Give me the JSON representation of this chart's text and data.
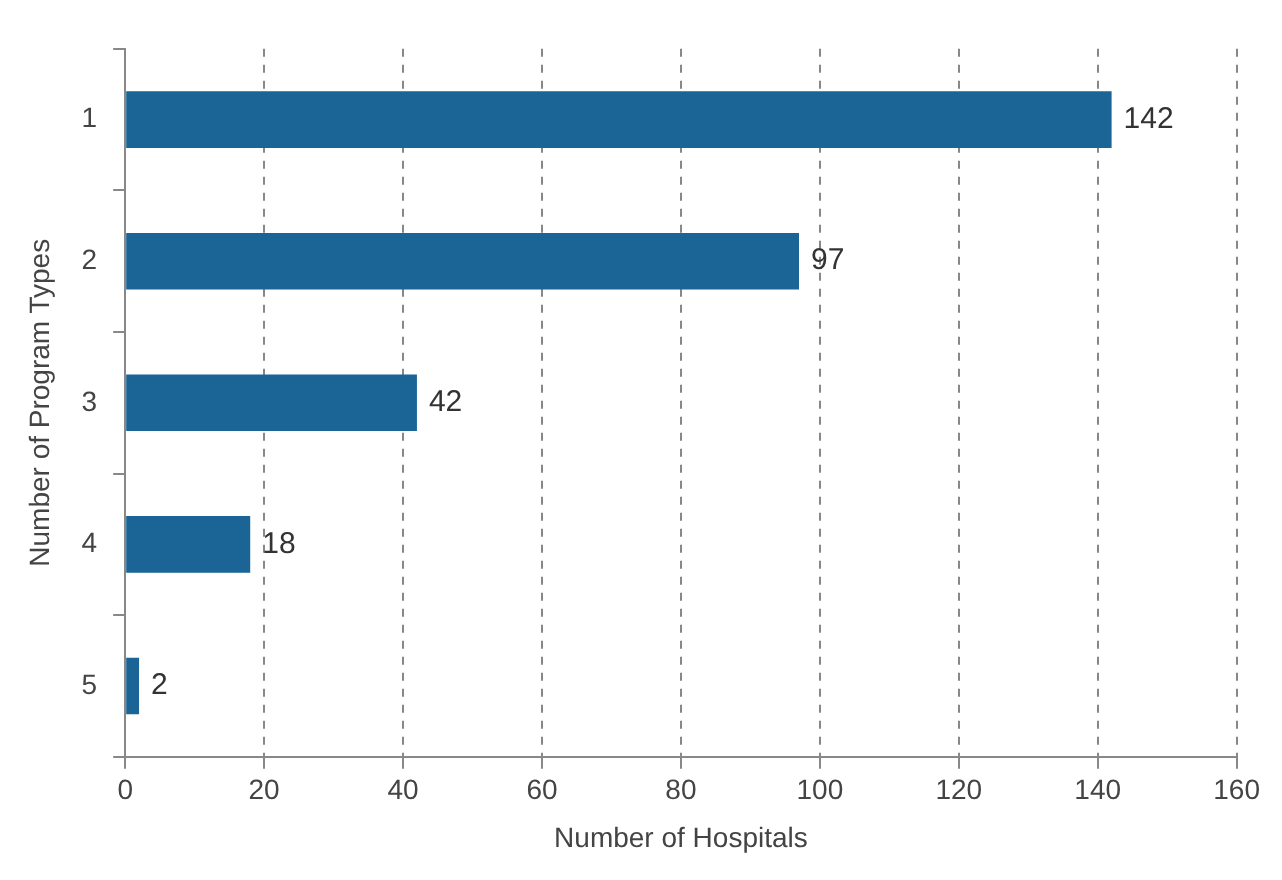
{
  "chart_data": {
    "type": "bar",
    "orientation": "horizontal",
    "categories": [
      "1",
      "2",
      "3",
      "4",
      "5"
    ],
    "values": [
      142,
      97,
      42,
      18,
      2
    ],
    "color": "#1a6496",
    "xlim": [
      0,
      160
    ],
    "xticks": [
      0,
      20,
      40,
      60,
      80,
      100,
      120,
      140,
      160
    ],
    "xlabel": "Number of Hospitals",
    "ylabel": "Number of Program Types",
    "grid": "x",
    "line_style": "dashed",
    "data_labels": true,
    "legend": false
  }
}
